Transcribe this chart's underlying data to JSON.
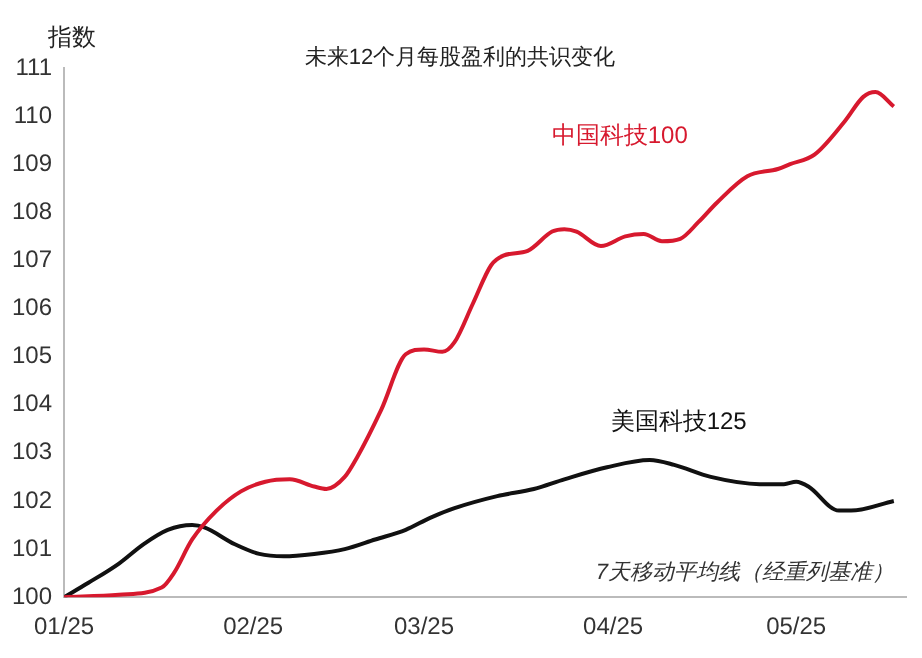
{
  "chart_data": {
    "type": "line",
    "title": "未来12个月每股盈利的共识变化",
    "ylabel": "指数",
    "annotations": [
      "7天移动平均线（经重列基准）"
    ],
    "xlim": [
      "--01-25",
      "--06-12"
    ],
    "xticks": [
      {
        "value": "--01-25",
        "label": "01/25"
      },
      {
        "value": "--02-25",
        "label": "02/25"
      },
      {
        "value": "--03-25",
        "label": "03/25"
      },
      {
        "value": "--04-25",
        "label": "04/25"
      },
      {
        "value": "--05-25",
        "label": "05/25"
      }
    ],
    "ylim": [
      100,
      111
    ],
    "yticks": [
      100,
      101,
      102,
      103,
      104,
      105,
      106,
      107,
      108,
      109,
      110,
      111
    ],
    "grid": false,
    "legend": false,
    "marker": "none",
    "line_style": "solid",
    "series": [
      {
        "name": "中国科技100",
        "color": "#d7192e",
        "x": [
          "--01-25",
          "--02-03",
          "--02-10",
          "--02-12",
          "--02-15",
          "--02-19",
          "--02-23",
          "--02-27",
          "--03-03",
          "--03-07",
          "--03-09",
          "--03-12",
          "--03-14",
          "--03-18",
          "--03-22",
          "--03-25",
          "--03-28",
          "--03-30",
          "--04-02",
          "--04-05",
          "--04-07",
          "--04-11",
          "--04-15",
          "--04-17",
          "--04-19",
          "--04-23",
          "--04-27",
          "--04-30",
          "--05-03",
          "--05-06",
          "--05-09",
          "--05-12",
          "--05-17",
          "--05-22",
          "--05-24",
          "--05-28",
          "--06-02",
          "--06-05",
          "--06-07",
          "--06-10"
        ],
        "values": [
          100,
          100.05,
          100.2,
          100.5,
          101.2,
          101.8,
          102.2,
          102.4,
          102.45,
          102.3,
          102.25,
          102.5,
          102.9,
          103.9,
          105.05,
          105.15,
          105.1,
          105.3,
          106.1,
          106.9,
          107.1,
          107.2,
          107.6,
          107.65,
          107.6,
          107.3,
          107.5,
          107.55,
          107.4,
          107.45,
          107.8,
          108.2,
          108.75,
          108.9,
          109,
          109.2,
          109.9,
          110.4,
          110.5,
          110.2
        ]
      },
      {
        "name": "美国科技125",
        "color": "#111111",
        "x": [
          "--01-25",
          "--01-29",
          "--02-03",
          "--02-07",
          "--02-11",
          "--02-15",
          "--02-17",
          "--02-22",
          "--02-26",
          "--03-02",
          "--03-07",
          "--03-12",
          "--03-17",
          "--03-22",
          "--03-26",
          "--03-30",
          "--04-06",
          "--04-12",
          "--04-17",
          "--04-24",
          "--05-01",
          "--05-05",
          "--05-11",
          "--05-19",
          "--05-23",
          "--05-25",
          "--05-27",
          "--06-01",
          "--06-03",
          "--06-10"
        ],
        "values": [
          100,
          100.3,
          100.7,
          101.1,
          101.4,
          101.5,
          101.45,
          101.1,
          100.9,
          100.85,
          100.9,
          101,
          101.2,
          101.4,
          101.65,
          101.85,
          102.1,
          102.25,
          102.45,
          102.7,
          102.85,
          102.75,
          102.5,
          102.35,
          102.35,
          102.4,
          102.3,
          101.8,
          101.8,
          102
        ]
      }
    ]
  }
}
